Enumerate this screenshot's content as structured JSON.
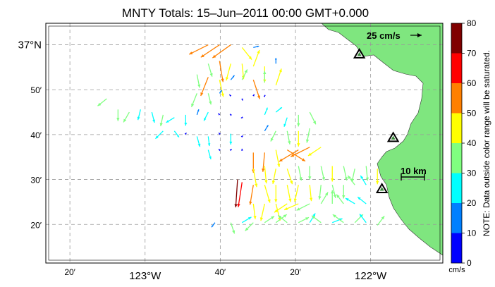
{
  "title": "MNTY Totals: 15–Jun–2011 00:00 GMT+0.000",
  "axes": {
    "lat_ticks": [
      {
        "value": 37.0,
        "label": "37°N",
        "major": true
      },
      {
        "value": 36.8333,
        "label": "50′",
        "major": false
      },
      {
        "value": 36.6667,
        "label": "40′",
        "major": false
      },
      {
        "value": 36.5,
        "label": "30′",
        "major": false
      },
      {
        "value": 36.3333,
        "label": "20′",
        "major": false
      }
    ],
    "lon_ticks": [
      {
        "value": -123.3333,
        "label": "20′",
        "major": false
      },
      {
        "value": -123.0,
        "label": "123°W",
        "major": true
      },
      {
        "value": -122.6667,
        "label": "40′",
        "major": false
      },
      {
        "value": -122.3333,
        "label": "20′",
        "major": false
      },
      {
        "value": -122.0,
        "label": "122°W",
        "major": true
      }
    ],
    "lat_range": [
      36.19,
      37.08
    ],
    "lon_range": [
      -123.44,
      -121.68
    ],
    "grid": "dashed gray"
  },
  "reference_vector": {
    "label": "25 cm/s",
    "speed_cm_s": 25,
    "direction": "east"
  },
  "scale_bar": {
    "label": "10 km",
    "length_km": 10
  },
  "stations": [
    {
      "lon": -122.05,
      "lat": 36.965
    },
    {
      "lon": -121.9,
      "lat": 36.655
    },
    {
      "lon": -121.95,
      "lat": 36.465
    }
  ],
  "colorbar": {
    "min": 0,
    "max": 80,
    "tick_labels": [
      "0",
      "10",
      "20",
      "30",
      "40",
      "50",
      "60",
      "70",
      "80"
    ],
    "unit": "cm/s",
    "note": "NOTE: Data outside color range will be saturated.",
    "colors": [
      "#0000ff",
      "#0080ff",
      "#00ffff",
      "#80ff80",
      "#ffff00",
      "#ff8000",
      "#ff0000",
      "#800000"
    ]
  },
  "land_color": "#7fe67f",
  "chart_data": {
    "type": "vector_field",
    "title": "MNTY Totals: 15–Jun–2011 00:00 GMT+0.000",
    "units": "cm/s",
    "x_axis": "longitude",
    "y_axis": "latitude",
    "vectors": [
      {
        "lon": -122.72,
        "lat": 37.0,
        "u": -12,
        "v": -6,
        "speed": 55
      },
      {
        "lon": -122.67,
        "lat": 37.0,
        "u": -12,
        "v": -8,
        "speed": 58
      },
      {
        "lon": -122.62,
        "lat": 37.0,
        "u": -14,
        "v": -10,
        "speed": 58
      },
      {
        "lon": -122.57,
        "lat": 36.99,
        "u": 4,
        "v": -5,
        "speed": 40
      },
      {
        "lon": -122.52,
        "lat": 36.99,
        "u": 8,
        "v": 2,
        "speed": 15
      },
      {
        "lon": -122.72,
        "lat": 36.93,
        "u": 3,
        "v": -10,
        "speed": 35
      },
      {
        "lon": -122.67,
        "lat": 36.94,
        "u": 2,
        "v": -12,
        "speed": 55
      },
      {
        "lon": -122.62,
        "lat": 36.93,
        "u": -3,
        "v": -11,
        "speed": 45
      },
      {
        "lon": -122.57,
        "lat": 36.93,
        "u": 1,
        "v": -10,
        "speed": 40
      },
      {
        "lon": -122.52,
        "lat": 36.92,
        "u": 3,
        "v": 8,
        "speed": 45
      },
      {
        "lon": -122.47,
        "lat": 36.92,
        "u": 0,
        "v": -8,
        "speed": 42
      },
      {
        "lon": -122.42,
        "lat": 36.93,
        "u": 0,
        "v": 6,
        "speed": 15
      },
      {
        "lon": -122.77,
        "lat": 36.89,
        "u": 2,
        "v": -10,
        "speed": 35
      },
      {
        "lon": -122.72,
        "lat": 36.88,
        "u": -4,
        "v": -10,
        "speed": 52
      },
      {
        "lon": -122.67,
        "lat": 36.87,
        "u": 2,
        "v": -9,
        "speed": 45
      },
      {
        "lon": -122.62,
        "lat": 36.87,
        "u": 4,
        "v": 5,
        "speed": 15
      },
      {
        "lon": -122.57,
        "lat": 36.87,
        "u": 3,
        "v": 6,
        "speed": 30
      },
      {
        "lon": -122.52,
        "lat": 36.87,
        "u": 3,
        "v": -9,
        "speed": 52
      },
      {
        "lon": -122.47,
        "lat": 36.86,
        "u": 0,
        "v": 7,
        "speed": 30
      },
      {
        "lon": -122.42,
        "lat": 36.85,
        "u": 3,
        "v": 9,
        "speed": 45
      },
      {
        "lon": -122.77,
        "lat": 36.82,
        "u": -4,
        "v": -10,
        "speed": 38
      },
      {
        "lon": -122.72,
        "lat": 36.82,
        "u": 2,
        "v": -8,
        "speed": 30
      },
      {
        "lon": -122.67,
        "lat": 36.82,
        "u": 3,
        "v": 4,
        "speed": 10
      },
      {
        "lon": -122.62,
        "lat": 36.81,
        "u": -3,
        "v": 3,
        "speed": 5
      },
      {
        "lon": -122.57,
        "lat": 36.8,
        "u": 1,
        "v": -3,
        "speed": 5
      },
      {
        "lon": -122.52,
        "lat": 36.81,
        "u": 2,
        "v": 4,
        "speed": 5
      },
      {
        "lon": -122.47,
        "lat": 36.81,
        "u": 3,
        "v": 5,
        "speed": 3
      },
      {
        "lon": -123.17,
        "lat": 36.8,
        "u": -5,
        "v": -4,
        "speed": 30
      },
      {
        "lon": -123.12,
        "lat": 36.76,
        "u": 0,
        "v": -10,
        "speed": 30
      },
      {
        "lon": -123.07,
        "lat": 36.75,
        "u": -4,
        "v": -7,
        "speed": 30
      },
      {
        "lon": -123.02,
        "lat": 36.76,
        "u": -2,
        "v": -8,
        "speed": 28
      },
      {
        "lon": -122.97,
        "lat": 36.75,
        "u": 2,
        "v": -8,
        "speed": 28
      },
      {
        "lon": -122.92,
        "lat": 36.74,
        "u": -2,
        "v": -9,
        "speed": 30
      },
      {
        "lon": -122.87,
        "lat": 36.73,
        "u": -5,
        "v": -3,
        "speed": 25
      },
      {
        "lon": -122.82,
        "lat": 36.74,
        "u": 0,
        "v": -8,
        "speed": 28
      },
      {
        "lon": -122.77,
        "lat": 36.74,
        "u": 2,
        "v": 6,
        "speed": 15
      },
      {
        "lon": -122.72,
        "lat": 36.75,
        "u": -3,
        "v": -6,
        "speed": 25
      },
      {
        "lon": -122.67,
        "lat": 36.74,
        "u": -3,
        "v": 4,
        "speed": 5
      },
      {
        "lon": -122.62,
        "lat": 36.74,
        "u": -3,
        "v": 3,
        "speed": 3
      },
      {
        "lon": -122.57,
        "lat": 36.73,
        "u": -2,
        "v": -1,
        "speed": 3
      },
      {
        "lon": -122.47,
        "lat": 36.74,
        "u": 2,
        "v": 5,
        "speed": 20
      },
      {
        "lon": -122.42,
        "lat": 36.75,
        "u": 5,
        "v": 4,
        "speed": 20
      },
      {
        "lon": -122.37,
        "lat": 36.73,
        "u": -2,
        "v": -6,
        "speed": 25
      },
      {
        "lon": -122.32,
        "lat": 36.74,
        "u": 0,
        "v": -10,
        "speed": 30
      },
      {
        "lon": -122.27,
        "lat": 36.75,
        "u": 4,
        "v": -8,
        "speed": 35
      },
      {
        "lon": -122.92,
        "lat": 36.68,
        "u": -5,
        "v": -5,
        "speed": 28
      },
      {
        "lon": -122.87,
        "lat": 36.68,
        "u": 3,
        "v": -4,
        "speed": 20
      },
      {
        "lon": -122.82,
        "lat": 36.67,
        "u": 4,
        "v": 4,
        "speed": 3
      },
      {
        "lon": -122.77,
        "lat": 36.66,
        "u": 2,
        "v": -7,
        "speed": 28
      },
      {
        "lon": -122.72,
        "lat": 36.66,
        "u": 1,
        "v": -8,
        "speed": 25
      },
      {
        "lon": -122.67,
        "lat": 36.67,
        "u": -3,
        "v": 4,
        "speed": 3
      },
      {
        "lon": -122.62,
        "lat": 36.67,
        "u": 0,
        "v": -8,
        "speed": 28
      },
      {
        "lon": -122.57,
        "lat": 36.66,
        "u": 4,
        "v": 3,
        "speed": 3
      },
      {
        "lon": -122.47,
        "lat": 36.68,
        "u": 3,
        "v": 5,
        "speed": 18
      },
      {
        "lon": -122.42,
        "lat": 36.68,
        "u": -3,
        "v": -6,
        "speed": 30
      },
      {
        "lon": -122.37,
        "lat": 36.68,
        "u": 2,
        "v": -10,
        "speed": 35
      },
      {
        "lon": -122.32,
        "lat": 36.68,
        "u": 0,
        "v": -9,
        "speed": 40
      },
      {
        "lon": -122.27,
        "lat": 36.69,
        "u": -2,
        "v": -10,
        "speed": 38
      },
      {
        "lon": -122.72,
        "lat": 36.61,
        "u": 2,
        "v": -7,
        "speed": 25
      },
      {
        "lon": -122.67,
        "lat": 36.61,
        "u": -3,
        "v": 3,
        "speed": 3
      },
      {
        "lon": -122.62,
        "lat": 36.61,
        "u": 3,
        "v": 2,
        "speed": 3
      },
      {
        "lon": -122.57,
        "lat": 36.61,
        "u": 0,
        "v": 4,
        "speed": 3
      },
      {
        "lon": -122.52,
        "lat": 36.6,
        "u": 0,
        "v": -10,
        "speed": 52
      },
      {
        "lon": -122.47,
        "lat": 36.6,
        "u": -1,
        "v": -11,
        "speed": 50
      },
      {
        "lon": -122.42,
        "lat": 36.61,
        "u": 2,
        "v": -10,
        "speed": 45
      },
      {
        "lon": -122.37,
        "lat": 36.61,
        "u": 8,
        "v": -5,
        "speed": 55
      },
      {
        "lon": -122.32,
        "lat": 36.61,
        "u": -10,
        "v": -6,
        "speed": 58
      },
      {
        "lon": -122.27,
        "lat": 36.62,
        "u": -12,
        "v": -6,
        "speed": 55
      },
      {
        "lon": -122.22,
        "lat": 36.62,
        "u": -6,
        "v": -4,
        "speed": 40
      },
      {
        "lon": -122.52,
        "lat": 36.54,
        "u": 2,
        "v": -11,
        "speed": 48
      },
      {
        "lon": -122.47,
        "lat": 36.55,
        "u": 1,
        "v": -10,
        "speed": 45
      },
      {
        "lon": -122.42,
        "lat": 36.54,
        "u": -2,
        "v": -10,
        "speed": 40
      },
      {
        "lon": -122.37,
        "lat": 36.54,
        "u": 3,
        "v": -9,
        "speed": 42
      },
      {
        "lon": -122.32,
        "lat": 36.55,
        "u": 2,
        "v": -10,
        "speed": 38
      },
      {
        "lon": -122.27,
        "lat": 36.55,
        "u": 0,
        "v": -10,
        "speed": 35
      },
      {
        "lon": -122.22,
        "lat": 36.55,
        "u": 2,
        "v": -9,
        "speed": 38
      },
      {
        "lon": -122.17,
        "lat": 36.55,
        "u": 0,
        "v": -8,
        "speed": 40
      },
      {
        "lon": -122.12,
        "lat": 36.55,
        "u": 2,
        "v": -9,
        "speed": 38
      },
      {
        "lon": -122.07,
        "lat": 36.54,
        "u": -2,
        "v": -9,
        "speed": 35
      },
      {
        "lon": -122.02,
        "lat": 36.55,
        "u": 1,
        "v": -10,
        "speed": 38
      },
      {
        "lon": -121.97,
        "lat": 36.54,
        "u": 0,
        "v": -8,
        "speed": 40
      },
      {
        "lon": -122.52,
        "lat": 36.48,
        "u": -2,
        "v": -12,
        "speed": 52
      },
      {
        "lon": -122.47,
        "lat": 36.48,
        "u": 3,
        "v": -10,
        "speed": 48
      },
      {
        "lon": -122.42,
        "lat": 36.48,
        "u": 0,
        "v": -10,
        "speed": 45
      },
      {
        "lon": -122.37,
        "lat": 36.48,
        "u": 2,
        "v": -10,
        "speed": 45
      },
      {
        "lon": -122.32,
        "lat": 36.48,
        "u": -2,
        "v": -9,
        "speed": 45
      },
      {
        "lon": -122.27,
        "lat": 36.48,
        "u": 1,
        "v": -10,
        "speed": 42
      },
      {
        "lon": -122.22,
        "lat": 36.48,
        "u": -1,
        "v": -9,
        "speed": 38
      },
      {
        "lon": -122.17,
        "lat": 36.48,
        "u": 2,
        "v": -8,
        "speed": 35
      },
      {
        "lon": -122.12,
        "lat": 36.48,
        "u": 0,
        "v": -8,
        "speed": 35
      },
      {
        "lon": -122.07,
        "lat": 36.48,
        "u": -3,
        "v": 4,
        "speed": 30
      },
      {
        "lon": -122.02,
        "lat": 36.48,
        "u": -3,
        "v": 5,
        "speed": 28
      },
      {
        "lon": -122.57,
        "lat": 36.49,
        "u": -2,
        "v": -13,
        "speed": 65
      },
      {
        "lon": -122.59,
        "lat": 36.5,
        "u": -1,
        "v": -15,
        "speed": 72
      },
      {
        "lon": -122.52,
        "lat": 36.41,
        "u": 1,
        "v": -8,
        "speed": 40
      },
      {
        "lon": -122.47,
        "lat": 36.41,
        "u": -2,
        "v": -9,
        "speed": 45
      },
      {
        "lon": -122.42,
        "lat": 36.41,
        "u": 2,
        "v": -8,
        "speed": 45
      },
      {
        "lon": -122.37,
        "lat": 36.41,
        "u": -6,
        "v": -4,
        "speed": 40
      },
      {
        "lon": -122.32,
        "lat": 36.41,
        "u": -7,
        "v": -3,
        "speed": 40
      },
      {
        "lon": -122.27,
        "lat": 36.41,
        "u": -6,
        "v": -3,
        "speed": 38
      },
      {
        "lon": -122.22,
        "lat": 36.41,
        "u": 3,
        "v": 5,
        "speed": 35
      },
      {
        "lon": -122.17,
        "lat": 36.41,
        "u": 0,
        "v": 6,
        "speed": 35
      },
      {
        "lon": -122.12,
        "lat": 36.41,
        "u": -3,
        "v": 4,
        "speed": 30
      },
      {
        "lon": -122.07,
        "lat": 36.41,
        "u": -5,
        "v": 3,
        "speed": 28
      },
      {
        "lon": -122.02,
        "lat": 36.41,
        "u": -5,
        "v": 4,
        "speed": 28
      },
      {
        "lon": -122.69,
        "lat": 36.34,
        "u": -3,
        "v": -4,
        "speed": 15
      },
      {
        "lon": -122.62,
        "lat": 36.34,
        "u": 2,
        "v": -6,
        "speed": 30
      },
      {
        "lon": -122.57,
        "lat": 36.34,
        "u": 5,
        "v": 3,
        "speed": 28
      },
      {
        "lon": -122.52,
        "lat": 36.34,
        "u": -3,
        "v": -3,
        "speed": 30
      },
      {
        "lon": -122.47,
        "lat": 36.34,
        "u": 3,
        "v": 2,
        "speed": 30
      },
      {
        "lon": -122.42,
        "lat": 36.34,
        "u": 4,
        "v": 3,
        "speed": 35
      },
      {
        "lon": -122.37,
        "lat": 36.34,
        "u": -5,
        "v": 4,
        "speed": 30
      },
      {
        "lon": -122.32,
        "lat": 36.34,
        "u": 6,
        "v": 3,
        "speed": 30
      },
      {
        "lon": -122.27,
        "lat": 36.34,
        "u": 3,
        "v": 5,
        "speed": 28
      },
      {
        "lon": -122.22,
        "lat": 36.34,
        "u": -4,
        "v": 3,
        "speed": 30
      },
      {
        "lon": -122.17,
        "lat": 36.34,
        "u": 5,
        "v": 2,
        "speed": 28
      },
      {
        "lon": -122.12,
        "lat": 36.34,
        "u": -4,
        "v": 3,
        "speed": 35
      },
      {
        "lon": -122.07,
        "lat": 36.34,
        "u": 4,
        "v": 4,
        "speed": 30
      },
      {
        "lon": -122.02,
        "lat": 36.34,
        "u": -3,
        "v": 4,
        "speed": 28
      },
      {
        "lon": -121.97,
        "lat": 36.33,
        "u": 3,
        "v": 4,
        "speed": 30
      }
    ]
  }
}
